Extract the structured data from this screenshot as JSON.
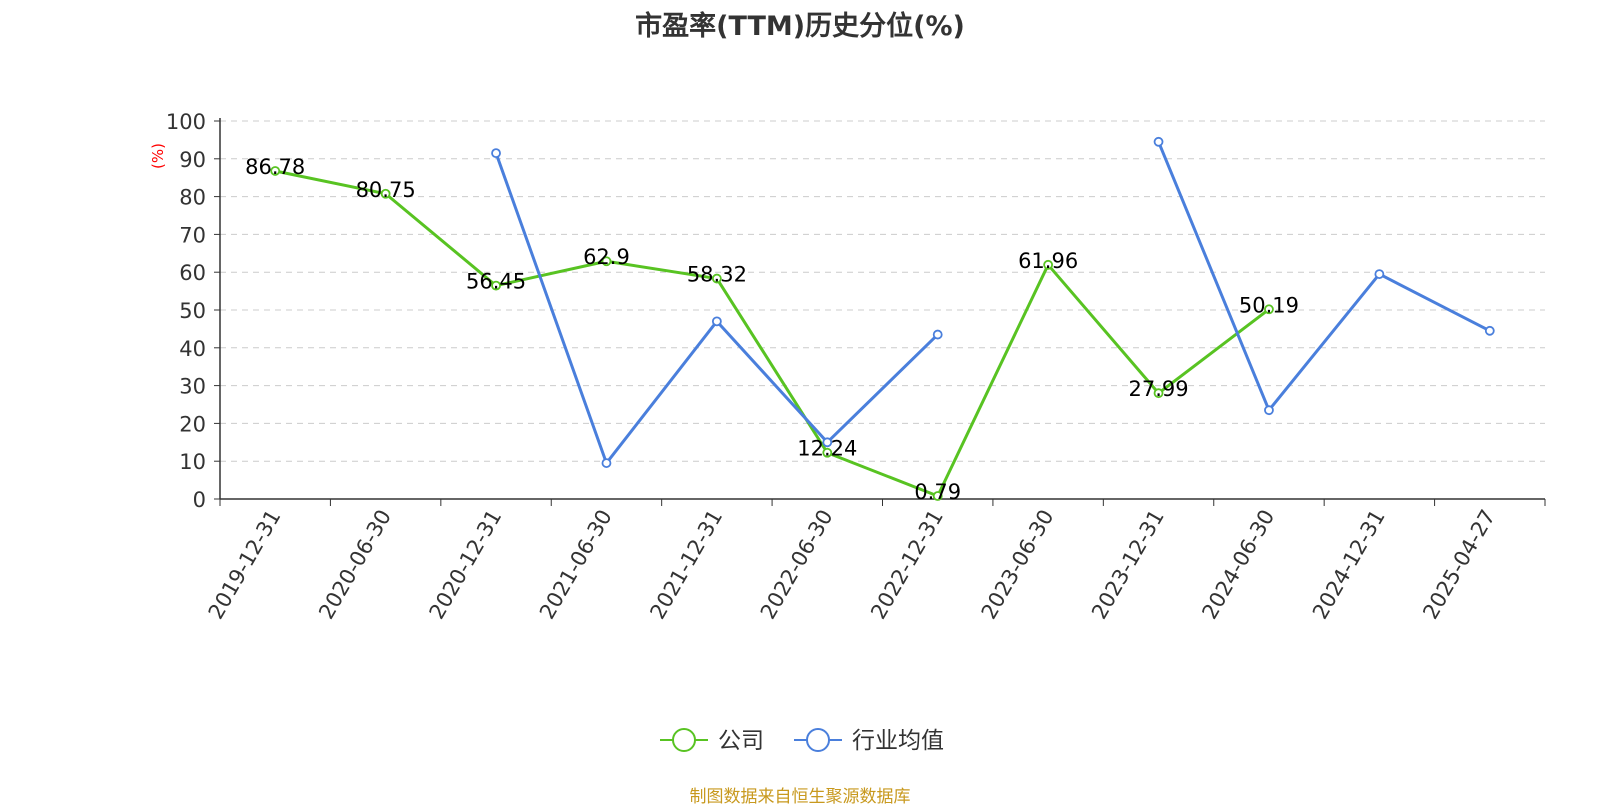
{
  "title": "市盈率(TTM)历史分位(%)",
  "source": "制图数据来自恒生聚源数据库",
  "colors": {
    "company": "#58c322",
    "industry": "#4a7fdc",
    "axis_unit": "#ff0000",
    "grid": "#cccccc",
    "text": "#333333"
  },
  "chart_data": {
    "type": "line",
    "title": "市盈率(TTM)历史分位(%)",
    "ylabel": "(%)",
    "xlabel": "",
    "ylim": [
      0,
      100
    ],
    "yticks": [
      0,
      10,
      20,
      30,
      40,
      50,
      60,
      70,
      80,
      90,
      100
    ],
    "grid": true,
    "legend_position": "bottom-center",
    "x": [
      "2019-12-31",
      "2020-06-30",
      "2020-12-31",
      "2021-06-30",
      "2021-12-31",
      "2022-06-30",
      "2022-12-31",
      "2023-06-30",
      "2023-12-31",
      "2024-06-30",
      "2024-12-31",
      "2025-04-27"
    ],
    "series": [
      {
        "name": "公司",
        "color": "#58c322",
        "show_labels": true,
        "values": [
          86.78,
          80.75,
          56.45,
          62.9,
          58.32,
          12.24,
          0.79,
          61.96,
          27.99,
          50.19,
          null,
          null
        ]
      },
      {
        "name": "行业均值",
        "color": "#4a7fdc",
        "show_labels": false,
        "values": [
          null,
          null,
          91.5,
          9.5,
          47,
          15,
          43.5,
          null,
          94.5,
          23.5,
          59.5,
          44.5
        ]
      }
    ]
  }
}
